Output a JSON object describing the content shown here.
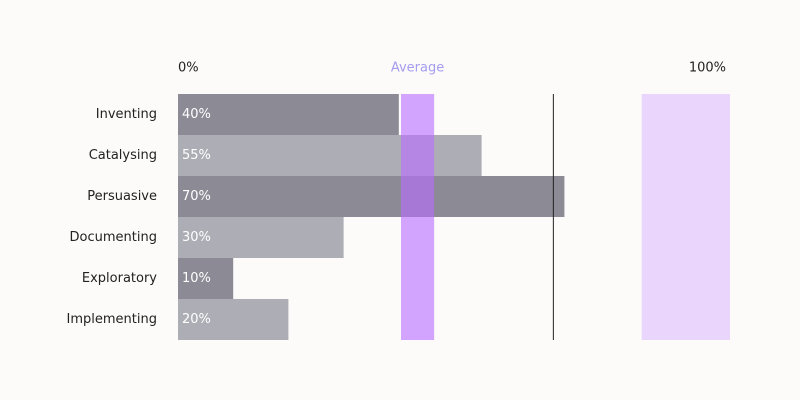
{
  "chart_data": {
    "type": "bar",
    "orientation": "horizontal",
    "categories": [
      "Inventing",
      "Catalysing",
      "Persuasive",
      "Documenting",
      "Exploratory",
      "Implementing"
    ],
    "values": [
      40,
      55,
      70,
      30,
      10,
      20
    ],
    "value_labels": [
      "40%",
      "55%",
      "70%",
      "30%",
      "10%",
      "20%"
    ],
    "colors": [
      "#8b8a95",
      "#adaeb5",
      "#8b8a95",
      "#adaeb5",
      "#8b8a95",
      "#adaeb5"
    ],
    "xlim": [
      0,
      100
    ],
    "xticks": [
      {
        "value": 0,
        "label": "0%"
      },
      {
        "value": 100,
        "label": "100%"
      }
    ],
    "average_label": "Average",
    "average_range": [
      40.4,
      46.4
    ],
    "average_color": "rgba(185,110,255,0.62)",
    "marker_line": 68,
    "marker_color": "#222",
    "target_range": [
      84,
      100
    ],
    "target_color": "#ead6fc"
  }
}
